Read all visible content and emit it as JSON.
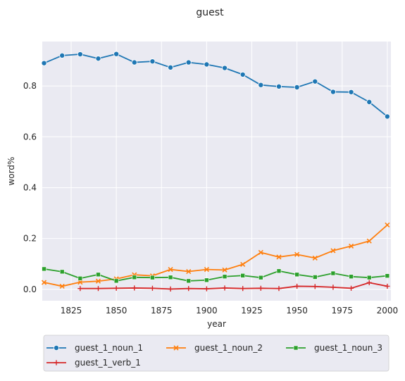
{
  "chart_data": {
    "type": "line",
    "title": "guest",
    "xlabel": "year",
    "ylabel": "word%",
    "xlim": [
      1809,
      2002
    ],
    "ylim": [
      -0.045,
      0.975
    ],
    "xticks": [
      1825,
      1850,
      1875,
      1900,
      1925,
      1950,
      1975,
      2000
    ],
    "yticks": [
      0.0,
      0.2,
      0.4,
      0.6,
      0.8
    ],
    "ytick_labels": [
      "0.0",
      "0.2",
      "0.4",
      "0.6",
      "0.8"
    ],
    "grid": true,
    "legend_position": "bottom",
    "series": [
      {
        "name": "guest_1_noun_1",
        "color": "#1f77b4",
        "marker": "circle",
        "x": [
          1810,
          1820,
          1830,
          1840,
          1850,
          1860,
          1870,
          1880,
          1890,
          1900,
          1910,
          1920,
          1930,
          1940,
          1950,
          1960,
          1970,
          1980,
          1990,
          2000
        ],
        "y": [
          0.89,
          0.92,
          0.925,
          0.908,
          0.926,
          0.893,
          0.897,
          0.873,
          0.893,
          0.885,
          0.871,
          0.845,
          0.804,
          0.798,
          0.795,
          0.818,
          0.777,
          0.776,
          0.737,
          0.68
        ]
      },
      {
        "name": "guest_1_noun_2",
        "color": "#ff7f0e",
        "marker": "x",
        "x": [
          1810,
          1820,
          1830,
          1840,
          1850,
          1860,
          1870,
          1880,
          1890,
          1900,
          1910,
          1920,
          1930,
          1940,
          1950,
          1960,
          1970,
          1980,
          1990,
          2000
        ],
        "y": [
          0.027,
          0.012,
          0.028,
          0.032,
          0.041,
          0.057,
          0.053,
          0.078,
          0.07,
          0.078,
          0.076,
          0.098,
          0.145,
          0.127,
          0.137,
          0.123,
          0.152,
          0.17,
          0.19,
          0.253
        ]
      },
      {
        "name": "guest_1_noun_3",
        "color": "#2ca02c",
        "marker": "square",
        "x": [
          1810,
          1820,
          1830,
          1840,
          1850,
          1860,
          1870,
          1880,
          1890,
          1900,
          1910,
          1920,
          1930,
          1940,
          1950,
          1960,
          1970,
          1980,
          1990,
          2000
        ],
        "y": [
          0.08,
          0.069,
          0.043,
          0.058,
          0.033,
          0.047,
          0.046,
          0.047,
          0.033,
          0.036,
          0.05,
          0.054,
          0.046,
          0.072,
          0.058,
          0.048,
          0.063,
          0.05,
          0.046,
          0.053
        ]
      },
      {
        "name": "guest_1_verb_1",
        "color": "#d62728",
        "marker": "plus",
        "x": [
          1830,
          1840,
          1850,
          1860,
          1870,
          1880,
          1890,
          1900,
          1910,
          1920,
          1930,
          1940,
          1950,
          1960,
          1970,
          1980,
          1990,
          2000
        ],
        "y": [
          0.003,
          0.003,
          0.004,
          0.005,
          0.004,
          0.001,
          0.003,
          0.002,
          0.005,
          0.003,
          0.004,
          0.003,
          0.012,
          0.011,
          0.008,
          0.004,
          0.026,
          0.012
        ]
      }
    ]
  }
}
